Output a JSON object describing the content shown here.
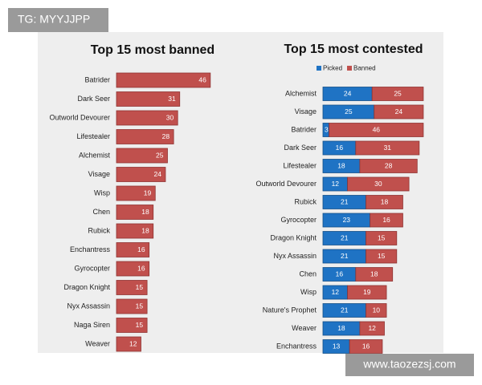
{
  "overlays": {
    "tag": "TG: MYYJJPP",
    "site": "www.taozezsj.com"
  },
  "chart_data": [
    {
      "type": "bar",
      "orientation": "horizontal",
      "title": "Top 15 most banned",
      "categories": [
        "Batrider",
        "Dark Seer",
        "Outworld Devourer",
        "Lifestealer",
        "Alchemist",
        "Visage",
        "Wisp",
        "Chen",
        "Rubick",
        "Enchantress",
        "Gyrocopter",
        "Dragon Knight",
        "Nyx Assassin",
        "Naga Siren",
        "Weaver"
      ],
      "values": [
        46,
        31,
        30,
        28,
        25,
        24,
        19,
        18,
        18,
        16,
        16,
        15,
        15,
        15,
        12
      ],
      "color": "#c0504d"
    },
    {
      "type": "stacked_bar",
      "orientation": "horizontal",
      "title": "Top 15 most contested",
      "legend": "top-left",
      "categories": [
        "Alchemist",
        "Visage",
        "Batrider",
        "Dark Seer",
        "Lifestealer",
        "Outworld Devourer",
        "Rubick",
        "Gyrocopter",
        "Dragon Knight",
        "Nyx Assassin",
        "Chen",
        "Wisp",
        "Nature's Prophet",
        "Weaver",
        "Enchantress"
      ],
      "series": [
        {
          "name": "Picked",
          "color": "#1f73c4",
          "values": [
            24,
            25,
            3,
            16,
            18,
            12,
            21,
            23,
            21,
            21,
            16,
            12,
            21,
            18,
            13
          ]
        },
        {
          "name": "Banned",
          "color": "#c0504d",
          "values": [
            25,
            24,
            46,
            31,
            28,
            30,
            18,
            16,
            15,
            15,
            18,
            19,
            10,
            12,
            16
          ]
        }
      ]
    }
  ]
}
